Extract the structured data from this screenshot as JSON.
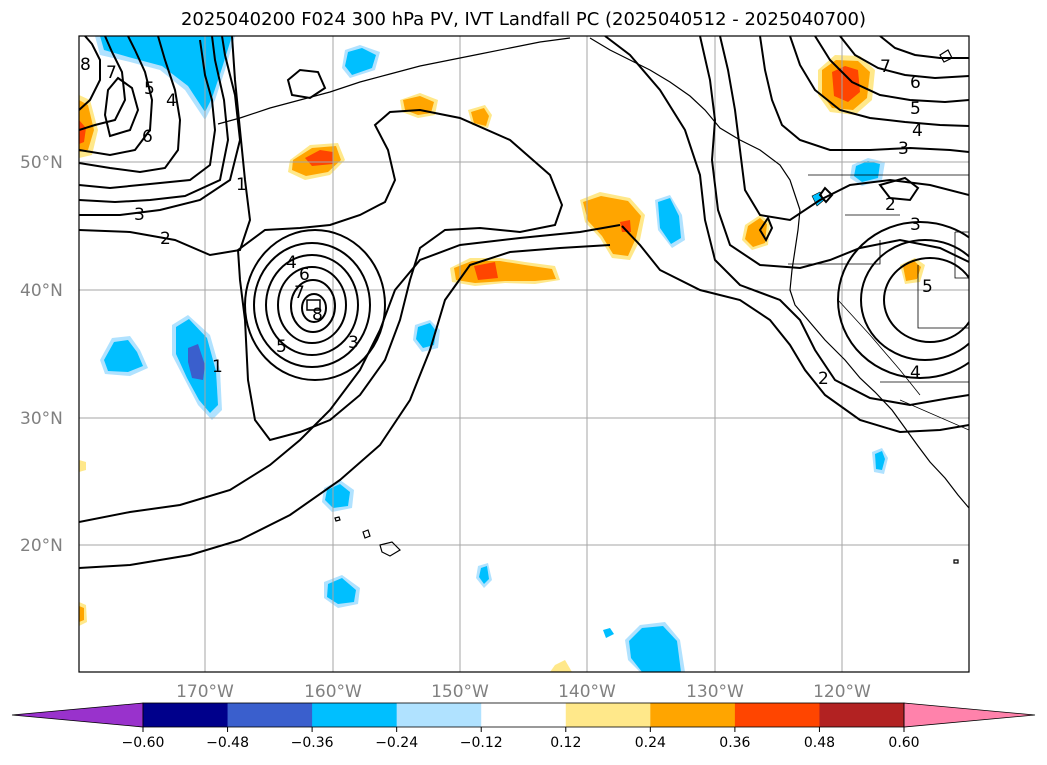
{
  "title": "2025040200 F024 300 hPa PV, IVT Landfall PC (2025040512 - 2025040700)",
  "lat_labels": [
    "50°N",
    "40°N",
    "30°N",
    "20°N"
  ],
  "lon_labels": [
    "170°W",
    "160°W",
    "150°W",
    "140°W",
    "130°W",
    "120°W"
  ],
  "contour_labels": [
    "8",
    "7",
    "5",
    "4",
    "6",
    "1",
    "3",
    "2",
    "4",
    "6",
    "7",
    "8",
    "5",
    "3",
    "1",
    "7",
    "6",
    "5",
    "4",
    "3",
    "2",
    "3",
    "5",
    "2",
    "4"
  ],
  "colorbar": {
    "ticks": [
      "−0.60",
      "−0.48",
      "−0.36",
      "−0.24",
      "−0.12",
      "0.12",
      "0.24",
      "0.36",
      "0.48",
      "0.60"
    ],
    "colors": [
      "#9932cc",
      "#00008b",
      "#3a5fcd",
      "#00bfff",
      "#b0e2ff",
      "#ffffff",
      "#ffe88a",
      "#ffa500",
      "#ff4500",
      "#b22222",
      "#ff82ab"
    ]
  }
}
